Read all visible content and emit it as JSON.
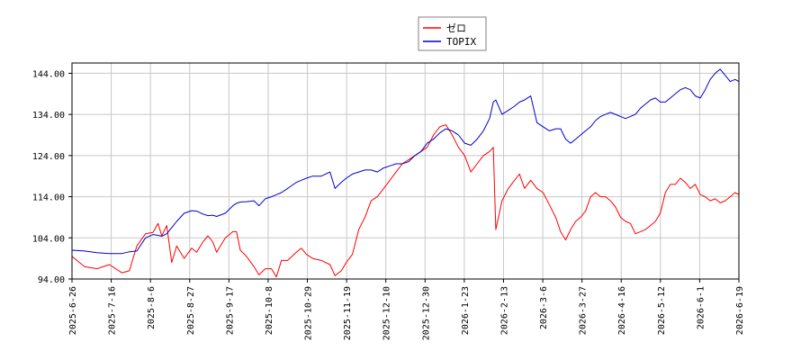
{
  "chart_data": {
    "type": "line",
    "title": "",
    "xlabel": "",
    "ylabel": "",
    "ylim": [
      94.0,
      146.5
    ],
    "y_ticks": [
      "94.00",
      "104.00",
      "114.00",
      "124.00",
      "134.00",
      "144.00"
    ],
    "x_ticks": [
      "2025-6-26",
      "2025-7-16",
      "2025-8-6",
      "2025-8-27",
      "2025-9-17",
      "2025-10-8",
      "2025-10-29",
      "2025-11-19",
      "2025-12-10",
      "2025-12-30",
      "2026-1-23",
      "2026-2-13",
      "2026-3-6",
      "2026-3-27",
      "2026-4-16",
      "2026-5-12",
      "2026-6-1",
      "2026-6-19"
    ],
    "grid": true,
    "legend_position": "top-center",
    "series": [
      {
        "name": "ゼロ",
        "color": "#ff0000",
        "values": [
          [
            0,
            99.5
          ],
          [
            1.0,
            97.0
          ],
          [
            2.0,
            96.5
          ],
          [
            3.0,
            97.5
          ],
          [
            4.0,
            95.5
          ],
          [
            4.6,
            96.0
          ],
          [
            5.2,
            102.0
          ],
          [
            5.9,
            105.0
          ],
          [
            6.5,
            105.3
          ],
          [
            6.9,
            107.5
          ],
          [
            7.2,
            104.5
          ],
          [
            7.6,
            107.0
          ],
          [
            8.0,
            98.0
          ],
          [
            8.4,
            102.0
          ],
          [
            9.0,
            99.0
          ],
          [
            9.6,
            101.5
          ],
          [
            10.0,
            100.5
          ],
          [
            10.5,
            103.0
          ],
          [
            10.9,
            104.5
          ],
          [
            11.3,
            103.0
          ],
          [
            11.6,
            100.5
          ],
          [
            12.3,
            104.0
          ],
          [
            12.9,
            105.5
          ],
          [
            13.2,
            105.5
          ],
          [
            13.5,
            101.0
          ],
          [
            14.0,
            99.5
          ],
          [
            14.6,
            97.0
          ],
          [
            15.0,
            95.0
          ],
          [
            15.5,
            96.5
          ],
          [
            16.0,
            96.5
          ],
          [
            16.4,
            94.5
          ],
          [
            16.8,
            98.5
          ],
          [
            17.3,
            98.5
          ],
          [
            18.0,
            100.5
          ],
          [
            18.4,
            101.5
          ],
          [
            18.8,
            100.0
          ],
          [
            19.3,
            99.0
          ],
          [
            20.0,
            98.5
          ],
          [
            20.7,
            97.5
          ],
          [
            21.1,
            94.8
          ],
          [
            21.6,
            96.0
          ],
          [
            22.0,
            98.0
          ],
          [
            22.5,
            100.0
          ],
          [
            23.0,
            106.0
          ],
          [
            23.5,
            109.0
          ],
          [
            24.0,
            113.0
          ],
          [
            24.5,
            114.0
          ],
          [
            25.0,
            116.0
          ],
          [
            25.5,
            118.0
          ],
          [
            26.0,
            120.0
          ],
          [
            26.5,
            122.0
          ],
          [
            27.0,
            123.0
          ],
          [
            27.5,
            124.0
          ],
          [
            28.0,
            125.0
          ],
          [
            28.5,
            126.0
          ],
          [
            29.0,
            129.0
          ],
          [
            29.5,
            131.0
          ],
          [
            30.0,
            131.5
          ],
          [
            30.5,
            129.0
          ],
          [
            31.0,
            126.0
          ],
          [
            31.5,
            124.0
          ],
          [
            32.0,
            120.0
          ],
          [
            32.5,
            122.0
          ],
          [
            33.0,
            124.0
          ],
          [
            33.5,
            125.0
          ],
          [
            33.8,
            126.0
          ],
          [
            34.0,
            106.0
          ],
          [
            34.5,
            113.0
          ],
          [
            35.0,
            116.0
          ],
          [
            35.5,
            118.0
          ],
          [
            35.9,
            119.5
          ],
          [
            36.3,
            116.0
          ],
          [
            36.8,
            118.0
          ],
          [
            37.3,
            116.0
          ],
          [
            37.8,
            115.0
          ],
          [
            38.3,
            112.0
          ],
          [
            38.8,
            109.0
          ],
          [
            39.2,
            105.5
          ],
          [
            39.6,
            103.5
          ],
          [
            40.0,
            106.0
          ],
          [
            40.4,
            108.0
          ],
          [
            40.8,
            109.0
          ],
          [
            41.2,
            110.5
          ],
          [
            41.6,
            114.0
          ],
          [
            42.0,
            115.0
          ],
          [
            42.4,
            114.0
          ],
          [
            42.8,
            114.0
          ],
          [
            43.2,
            113.0
          ],
          [
            43.6,
            111.5
          ],
          [
            44.0,
            109.0
          ],
          [
            44.4,
            108.0
          ],
          [
            44.8,
            107.5
          ],
          [
            45.2,
            105.0
          ],
          [
            45.6,
            105.5
          ],
          [
            46.0,
            106.0
          ],
          [
            46.4,
            107.0
          ],
          [
            46.8,
            108.0
          ],
          [
            47.2,
            110.0
          ],
          [
            47.6,
            115.0
          ],
          [
            48.0,
            117.0
          ],
          [
            48.4,
            117.0
          ],
          [
            48.8,
            118.5
          ],
          [
            49.2,
            117.5
          ],
          [
            49.6,
            116.0
          ],
          [
            50.0,
            117.0
          ],
          [
            50.4,
            114.5
          ],
          [
            50.8,
            114.0
          ],
          [
            51.2,
            113.0
          ],
          [
            51.6,
            113.5
          ],
          [
            52.0,
            112.5
          ],
          [
            52.4,
            113.0
          ],
          [
            52.8,
            114.0
          ],
          [
            53.2,
            115.0
          ],
          [
            53.5,
            114.5
          ]
        ]
      },
      {
        "name": "TOPIX",
        "color": "#0000cc",
        "values": [
          [
            0,
            101.0
          ],
          [
            1.0,
            100.8
          ],
          [
            2.0,
            100.4
          ],
          [
            3.0,
            100.2
          ],
          [
            4.0,
            100.2
          ],
          [
            4.6,
            100.6
          ],
          [
            5.2,
            100.8
          ],
          [
            5.9,
            104.0
          ],
          [
            6.5,
            104.8
          ],
          [
            6.9,
            104.6
          ],
          [
            7.2,
            104.4
          ],
          [
            7.6,
            105.0
          ],
          [
            8.0,
            106.5
          ],
          [
            8.4,
            108.0
          ],
          [
            9.0,
            110.0
          ],
          [
            9.6,
            110.6
          ],
          [
            10.0,
            110.5
          ],
          [
            10.5,
            109.8
          ],
          [
            10.9,
            109.4
          ],
          [
            11.3,
            109.5
          ],
          [
            11.6,
            109.2
          ],
          [
            12.3,
            110.0
          ],
          [
            12.9,
            111.8
          ],
          [
            13.2,
            112.4
          ],
          [
            13.5,
            112.7
          ],
          [
            14.0,
            112.8
          ],
          [
            14.6,
            113.0
          ],
          [
            15.0,
            111.8
          ],
          [
            15.5,
            113.5
          ],
          [
            16.0,
            114.0
          ],
          [
            16.4,
            114.5
          ],
          [
            16.8,
            115.0
          ],
          [
            17.3,
            116.0
          ],
          [
            18.0,
            117.5
          ],
          [
            18.4,
            118.0
          ],
          [
            18.8,
            118.5
          ],
          [
            19.3,
            119.0
          ],
          [
            20.0,
            119.0
          ],
          [
            20.7,
            120.0
          ],
          [
            21.1,
            116.0
          ],
          [
            21.6,
            117.5
          ],
          [
            22.0,
            118.5
          ],
          [
            22.5,
            119.5
          ],
          [
            23.0,
            120.0
          ],
          [
            23.5,
            120.5
          ],
          [
            24.0,
            120.5
          ],
          [
            24.5,
            120.0
          ],
          [
            25.0,
            121.0
          ],
          [
            25.5,
            121.5
          ],
          [
            26.0,
            122.0
          ],
          [
            26.5,
            122.0
          ],
          [
            27.0,
            122.5
          ],
          [
            27.5,
            124.0
          ],
          [
            28.0,
            125.0
          ],
          [
            28.5,
            127.0
          ],
          [
            29.0,
            128.0
          ],
          [
            29.5,
            129.5
          ],
          [
            30.0,
            130.5
          ],
          [
            30.5,
            130.0
          ],
          [
            31.0,
            129.0
          ],
          [
            31.5,
            127.0
          ],
          [
            32.0,
            126.5
          ],
          [
            32.5,
            128.0
          ],
          [
            33.0,
            130.0
          ],
          [
            33.5,
            133.0
          ],
          [
            33.8,
            137.0
          ],
          [
            34.0,
            137.5
          ],
          [
            34.5,
            134.0
          ],
          [
            35.0,
            135.0
          ],
          [
            35.5,
            136.0
          ],
          [
            35.9,
            137.0
          ],
          [
            36.3,
            137.5
          ],
          [
            36.8,
            138.5
          ],
          [
            37.3,
            132.0
          ],
          [
            37.8,
            131.0
          ],
          [
            38.3,
            130.0
          ],
          [
            38.8,
            130.5
          ],
          [
            39.2,
            130.5
          ],
          [
            39.6,
            128.0
          ],
          [
            40.0,
            127.0
          ],
          [
            40.4,
            128.0
          ],
          [
            40.8,
            129.0
          ],
          [
            41.2,
            130.0
          ],
          [
            41.6,
            131.0
          ],
          [
            42.0,
            132.5
          ],
          [
            42.4,
            133.5
          ],
          [
            42.8,
            134.0
          ],
          [
            43.2,
            134.5
          ],
          [
            43.6,
            134.0
          ],
          [
            44.0,
            133.5
          ],
          [
            44.4,
            133.0
          ],
          [
            44.8,
            133.5
          ],
          [
            45.2,
            134.0
          ],
          [
            45.6,
            135.5
          ],
          [
            46.0,
            136.5
          ],
          [
            46.4,
            137.5
          ],
          [
            46.8,
            138.0
          ],
          [
            47.2,
            137.0
          ],
          [
            47.6,
            137.0
          ],
          [
            48.0,
            138.0
          ],
          [
            48.4,
            139.0
          ],
          [
            48.8,
            140.0
          ],
          [
            49.2,
            140.5
          ],
          [
            49.6,
            140.0
          ],
          [
            50.0,
            138.5
          ],
          [
            50.4,
            138.0
          ],
          [
            50.8,
            140.0
          ],
          [
            51.2,
            142.5
          ],
          [
            51.6,
            144.0
          ],
          [
            52.0,
            145.0
          ],
          [
            52.4,
            143.5
          ],
          [
            52.8,
            142.0
          ],
          [
            53.2,
            142.5
          ],
          [
            53.5,
            142.0
          ]
        ]
      }
    ]
  }
}
